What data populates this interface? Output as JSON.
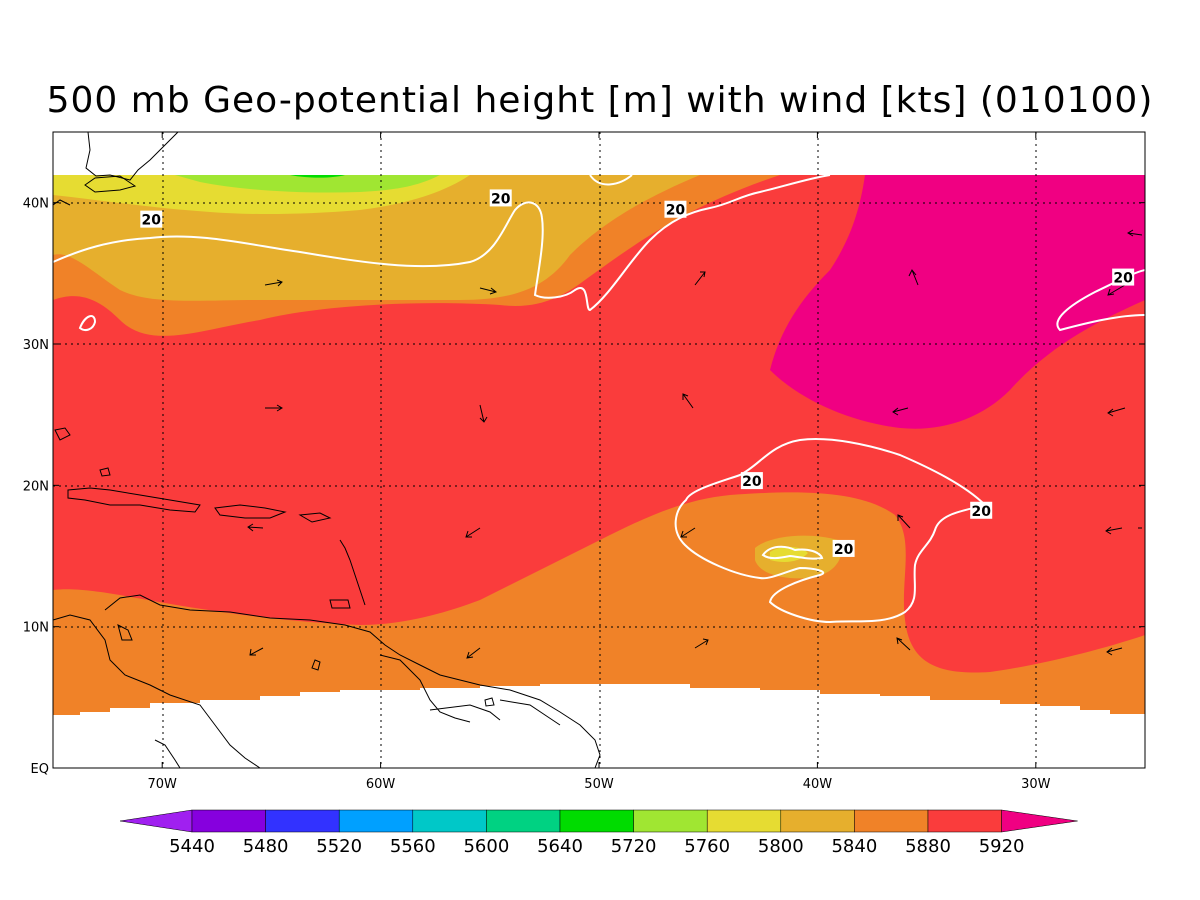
{
  "title": "500 mb Geo-potential height [m] with wind [kts] (010100)",
  "map": {
    "lon_range": [
      -75,
      -25
    ],
    "lat_range": [
      0,
      45
    ],
    "lon_ticks": [
      {
        "value": -70,
        "label": "70W"
      },
      {
        "value": -60,
        "label": "60W"
      },
      {
        "value": -50,
        "label": "50W"
      },
      {
        "value": -40,
        "label": "40W"
      },
      {
        "value": -30,
        "label": "30W"
      }
    ],
    "lat_ticks": [
      {
        "value": 0,
        "label": "EQ"
      },
      {
        "value": 10,
        "label": "10N"
      },
      {
        "value": 20,
        "label": "20N"
      },
      {
        "value": 30,
        "label": "30N"
      },
      {
        "value": 40,
        "label": "40N"
      }
    ],
    "contour_label": "20",
    "contour_labels": [
      {
        "lon": -70.5,
        "lat": 38.8
      },
      {
        "lon": -54.5,
        "lat": 40.3
      },
      {
        "lon": -46.5,
        "lat": 39.5
      },
      {
        "lon": -26.0,
        "lat": 34.7
      },
      {
        "lon": -43.0,
        "lat": 20.3
      },
      {
        "lon": -32.5,
        "lat": 18.2
      },
      {
        "lon": -38.8,
        "lat": 15.5
      }
    ]
  },
  "colorbar": {
    "levels": [
      "5440",
      "5480",
      "5520",
      "5560",
      "5600",
      "5640",
      "5720",
      "5760",
      "5800",
      "5840",
      "5880",
      "5920"
    ],
    "colors": [
      "#a020f0",
      "#8600de",
      "#3232ff",
      "#00a0ff",
      "#00c8c8",
      "#00d282",
      "#00dc00",
      "#a0e632",
      "#e6dc32",
      "#e6af2d",
      "#f08228",
      "#fa3c3c",
      "#f00082"
    ]
  }
}
